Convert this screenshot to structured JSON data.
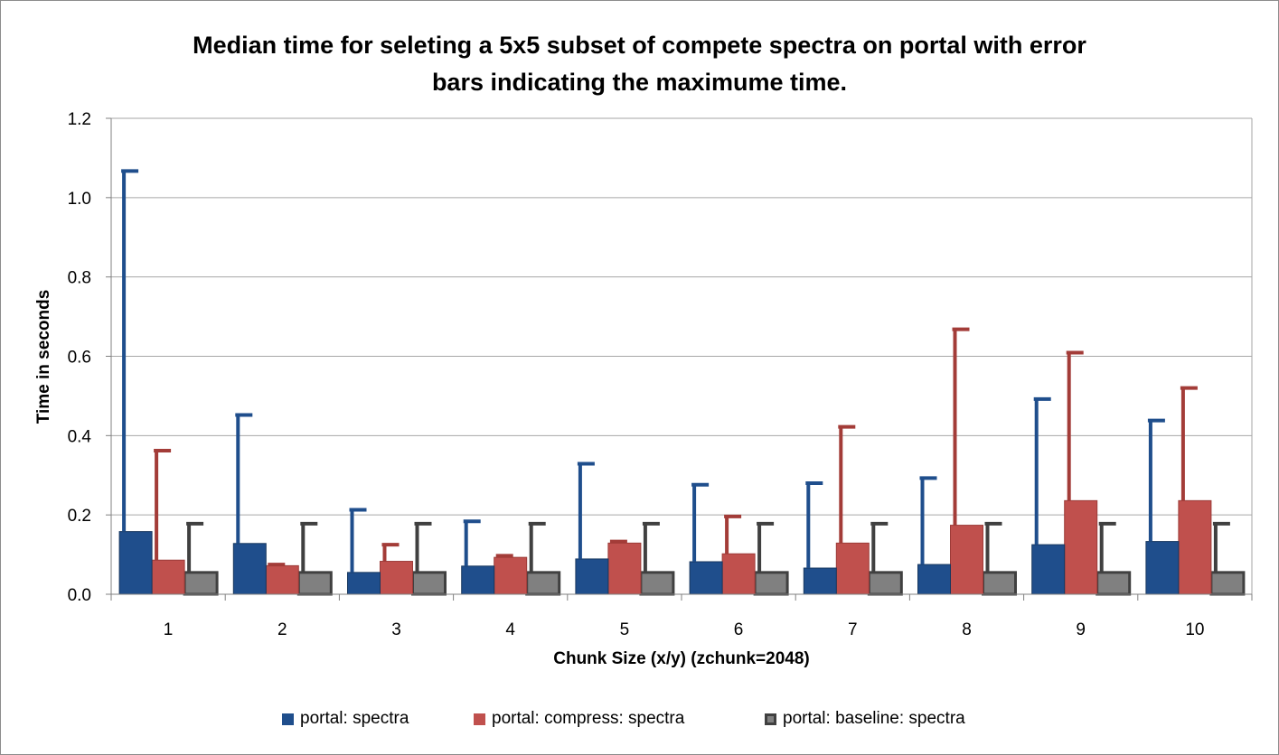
{
  "chart_data": {
    "type": "bar",
    "title_lines": [
      "Median time for seleting a 5x5 subset of compete spectra on portal with error",
      "bars indicating the maximume time."
    ],
    "xlabel": "Chunk Size (x/y) (zchunk=2048)",
    "ylabel": "Time in seconds",
    "categories": [
      "1",
      "2",
      "3",
      "4",
      "5",
      "6",
      "7",
      "8",
      "9",
      "10"
    ],
    "ylim": [
      0,
      1.2
    ],
    "yticks": [
      "0.0",
      "0.2",
      "0.4",
      "0.6",
      "0.8",
      "1.0",
      "1.2"
    ],
    "grid": true,
    "legend_position": "bottom",
    "series": [
      {
        "name": "portal: spectra",
        "color": "#1f4e8c",
        "values": [
          0.158,
          0.128,
          0.055,
          0.071,
          0.089,
          0.082,
          0.066,
          0.075,
          0.125,
          0.133
        ],
        "error_max": [
          1.067,
          0.452,
          0.213,
          0.184,
          0.329,
          0.276,
          0.28,
          0.293,
          0.492,
          0.438
        ]
      },
      {
        "name": "portal: compress: spectra",
        "color": "#c0504d",
        "values": [
          0.086,
          0.072,
          0.083,
          0.093,
          0.129,
          0.102,
          0.129,
          0.174,
          0.236,
          0.236
        ],
        "error_max": [
          0.362,
          0.075,
          0.125,
          0.097,
          0.133,
          0.196,
          0.422,
          0.668,
          0.609,
          0.52
        ]
      },
      {
        "name": "portal: baseline: spectra",
        "color": "#808080",
        "values": [
          0.055,
          0.055,
          0.055,
          0.055,
          0.055,
          0.055,
          0.055,
          0.055,
          0.055,
          0.055
        ],
        "error_max": [
          0.178,
          0.178,
          0.178,
          0.178,
          0.178,
          0.178,
          0.178,
          0.178,
          0.178,
          0.178
        ]
      }
    ]
  }
}
